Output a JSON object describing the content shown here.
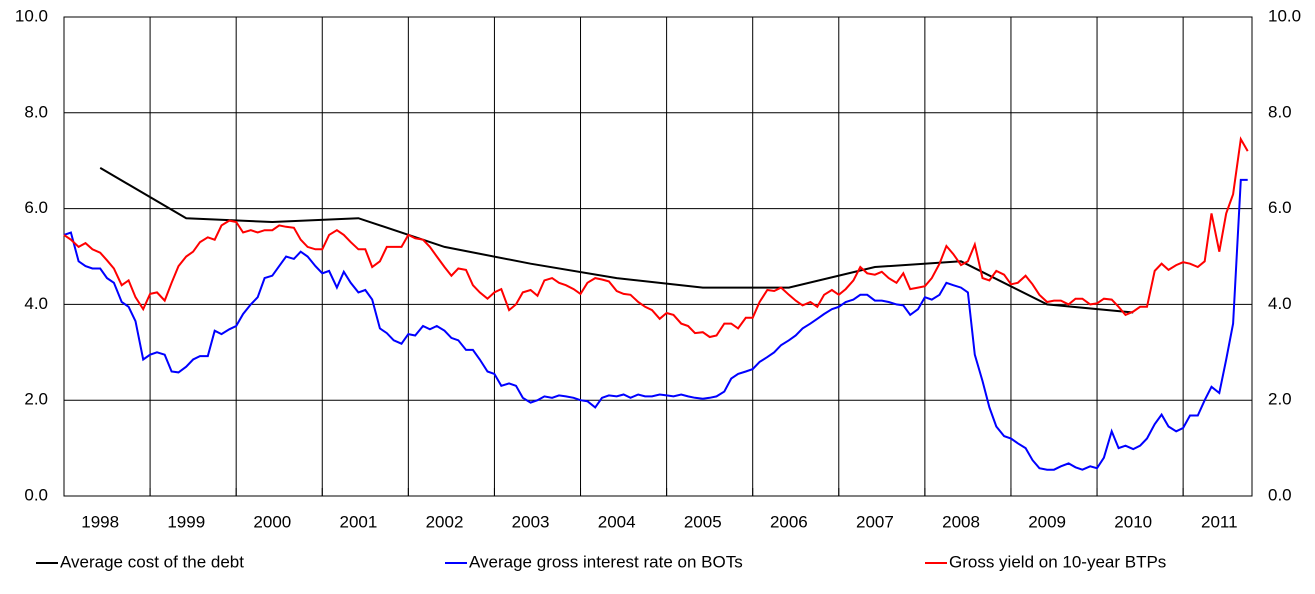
{
  "chart_data": {
    "type": "line",
    "xlim": [
      1998,
      2011.8
    ],
    "xticks": [
      1998,
      1999,
      2000,
      2001,
      2002,
      2003,
      2004,
      2005,
      2006,
      2007,
      2008,
      2009,
      2010,
      2011
    ],
    "ylim": [
      0,
      10
    ],
    "yticks": [
      {
        "value": 0,
        "label": "0.0"
      },
      {
        "value": 2,
        "label": "2.0"
      },
      {
        "value": 4,
        "label": "4.0"
      },
      {
        "value": 6,
        "label": "6.0"
      },
      {
        "value": 8,
        "label": "8.0"
      },
      {
        "value": 10,
        "label": "10.0"
      }
    ],
    "y2lim": [
      0,
      10
    ],
    "y2ticks": [
      {
        "value": 0,
        "label": "0.0"
      },
      {
        "value": 2,
        "label": "2.0"
      },
      {
        "value": 4,
        "label": "4.0"
      },
      {
        "value": 6,
        "label": "6.0"
      },
      {
        "value": 8,
        "label": "8.0"
      },
      {
        "value": 10,
        "label": "10.0"
      }
    ],
    "grid": true,
    "legend": "bottom",
    "x": [
      1998,
      1998.08,
      1998.17,
      1998.25,
      1998.33,
      1998.42,
      1998.5,
      1998.58,
      1998.67,
      1998.75,
      1998.83,
      1998.92,
      1999,
      1999.08,
      1999.17,
      1999.25,
      1999.33,
      1999.42,
      1999.5,
      1999.58,
      1999.67,
      1999.75,
      1999.83,
      1999.92,
      2000,
      2000.08,
      2000.17,
      2000.25,
      2000.33,
      2000.42,
      2000.5,
      2000.58,
      2000.67,
      2000.75,
      2000.83,
      2000.92,
      2001,
      2001.08,
      2001.17,
      2001.25,
      2001.33,
      2001.42,
      2001.5,
      2001.58,
      2001.67,
      2001.75,
      2001.83,
      2001.92,
      2002,
      2002.08,
      2002.17,
      2002.25,
      2002.33,
      2002.42,
      2002.5,
      2002.58,
      2002.67,
      2002.75,
      2002.83,
      2002.92,
      2003,
      2003.08,
      2003.17,
      2003.25,
      2003.33,
      2003.42,
      2003.5,
      2003.58,
      2003.67,
      2003.75,
      2003.83,
      2003.92,
      2004,
      2004.08,
      2004.17,
      2004.25,
      2004.33,
      2004.42,
      2004.5,
      2004.58,
      2004.67,
      2004.75,
      2004.83,
      2004.92,
      2005,
      2005.08,
      2005.17,
      2005.25,
      2005.33,
      2005.42,
      2005.5,
      2005.58,
      2005.67,
      2005.75,
      2005.83,
      2005.92,
      2006,
      2006.08,
      2006.17,
      2006.25,
      2006.33,
      2006.42,
      2006.5,
      2006.58,
      2006.67,
      2006.75,
      2006.83,
      2006.92,
      2007,
      2007.08,
      2007.17,
      2007.25,
      2007.33,
      2007.42,
      2007.5,
      2007.58,
      2007.67,
      2007.75,
      2007.83,
      2007.92,
      2008,
      2008.08,
      2008.17,
      2008.25,
      2008.33,
      2008.42,
      2008.5,
      2008.58,
      2008.67,
      2008.75,
      2008.83,
      2008.92,
      2009,
      2009.08,
      2009.17,
      2009.25,
      2009.33,
      2009.42,
      2009.5,
      2009.58,
      2009.67,
      2009.75,
      2009.83,
      2009.92,
      2010,
      2010.08,
      2010.17,
      2010.25,
      2010.33,
      2010.42,
      2010.5,
      2010.58,
      2010.67,
      2010.75,
      2010.83,
      2010.92,
      2011,
      2011.08,
      2011.17,
      2011.25,
      2011.33,
      2011.42,
      2011.5,
      2011.58,
      2011.67,
      2011.75
    ],
    "series": [
      {
        "name": "Average cost of the debt",
        "color": "#000000",
        "x": [
          1998.42,
          1999.42,
          2000.42,
          2001.42,
          2002.42,
          2003.42,
          2004.42,
          2005.42,
          2006.42,
          2007.42,
          2008.42,
          2009.42,
          2010.42
        ],
        "values": [
          6.85,
          5.8,
          5.72,
          5.8,
          5.2,
          4.85,
          4.55,
          4.35,
          4.35,
          4.78,
          4.9,
          4.0,
          3.83
        ]
      },
      {
        "name": "Average gross interest rate on BOTs",
        "color": "#0000ff",
        "values": [
          5.45,
          5.5,
          4.9,
          4.8,
          4.75,
          4.75,
          4.55,
          4.45,
          4.05,
          3.95,
          3.65,
          2.85,
          2.95,
          3.0,
          2.95,
          2.6,
          2.58,
          2.7,
          2.85,
          2.92,
          2.92,
          3.45,
          3.38,
          3.48,
          3.55,
          3.8,
          4.0,
          4.15,
          4.55,
          4.6,
          4.8,
          5.0,
          4.95,
          5.1,
          5.0,
          4.8,
          4.65,
          4.7,
          4.35,
          4.68,
          4.45,
          4.25,
          4.3,
          4.1,
          3.5,
          3.4,
          3.25,
          3.18,
          3.38,
          3.35,
          3.55,
          3.48,
          3.55,
          3.45,
          3.3,
          3.25,
          3.05,
          3.05,
          2.85,
          2.6,
          2.55,
          2.3,
          2.35,
          2.3,
          2.05,
          1.95,
          2.0,
          2.08,
          2.05,
          2.1,
          2.08,
          2.05,
          2.0,
          1.98,
          1.85,
          2.05,
          2.1,
          2.08,
          2.12,
          2.05,
          2.12,
          2.08,
          2.08,
          2.12,
          2.1,
          2.08,
          2.12,
          2.08,
          2.05,
          2.03,
          2.05,
          2.08,
          2.18,
          2.45,
          2.55,
          2.6,
          2.65,
          2.8,
          2.9,
          3.0,
          3.15,
          3.25,
          3.35,
          3.5,
          3.6,
          3.7,
          3.8,
          3.9,
          3.95,
          4.05,
          4.1,
          4.2,
          4.2,
          4.08,
          4.08,
          4.05,
          4.0,
          3.98,
          3.78,
          3.9,
          4.15,
          4.1,
          4.2,
          4.45,
          4.4,
          4.35,
          4.25,
          2.95,
          2.4,
          1.85,
          1.45,
          1.25,
          1.2,
          1.1,
          1.0,
          0.75,
          0.58,
          0.55,
          0.55,
          0.62,
          0.68,
          0.6,
          0.55,
          0.62,
          0.58,
          0.8,
          1.35,
          1.0,
          1.05,
          0.98,
          1.05,
          1.2,
          1.5,
          1.7,
          1.45,
          1.35,
          1.42,
          1.68,
          1.68,
          2.0,
          2.28,
          2.15,
          2.85,
          3.6,
          6.6,
          6.6
        ]
      },
      {
        "name": "Gross yield on 10-year BTPs",
        "color": "#ff0000",
        "values": [
          5.45,
          5.35,
          5.2,
          5.28,
          5.15,
          5.08,
          4.92,
          4.75,
          4.4,
          4.5,
          4.15,
          3.9,
          4.22,
          4.25,
          4.08,
          4.45,
          4.8,
          5.0,
          5.1,
          5.3,
          5.4,
          5.35,
          5.65,
          5.75,
          5.72,
          5.5,
          5.55,
          5.5,
          5.55,
          5.55,
          5.65,
          5.62,
          5.6,
          5.35,
          5.2,
          5.15,
          5.15,
          5.45,
          5.55,
          5.45,
          5.3,
          5.15,
          5.15,
          4.78,
          4.9,
          5.2,
          5.2,
          5.2,
          5.45,
          5.38,
          5.35,
          5.2,
          5.0,
          4.78,
          4.6,
          4.75,
          4.72,
          4.4,
          4.25,
          4.12,
          4.25,
          4.32,
          3.88,
          4.0,
          4.25,
          4.3,
          4.18,
          4.5,
          4.55,
          4.45,
          4.4,
          4.32,
          4.22,
          4.45,
          4.55,
          4.52,
          4.48,
          4.28,
          4.22,
          4.2,
          4.05,
          3.95,
          3.88,
          3.7,
          3.82,
          3.78,
          3.6,
          3.55,
          3.4,
          3.42,
          3.32,
          3.35,
          3.6,
          3.6,
          3.5,
          3.72,
          3.72,
          4.05,
          4.3,
          4.28,
          4.35,
          4.2,
          4.08,
          3.98,
          4.05,
          3.95,
          4.2,
          4.3,
          4.2,
          4.32,
          4.5,
          4.78,
          4.65,
          4.62,
          4.68,
          4.55,
          4.45,
          4.65,
          4.32,
          4.35,
          4.38,
          4.55,
          4.85,
          5.22,
          5.05,
          4.82,
          4.9,
          5.25,
          4.55,
          4.5,
          4.7,
          4.62,
          4.42,
          4.45,
          4.6,
          4.42,
          4.2,
          4.05,
          4.08,
          4.08,
          4.0,
          4.12,
          4.12,
          4.0,
          4.02,
          4.12,
          4.1,
          3.95,
          3.78,
          3.85,
          3.95,
          3.95,
          4.7,
          4.85,
          4.72,
          4.82,
          4.88,
          4.85,
          4.78,
          4.9,
          5.9,
          5.1,
          5.9,
          6.3,
          7.45,
          7.2
        ]
      }
    ]
  }
}
